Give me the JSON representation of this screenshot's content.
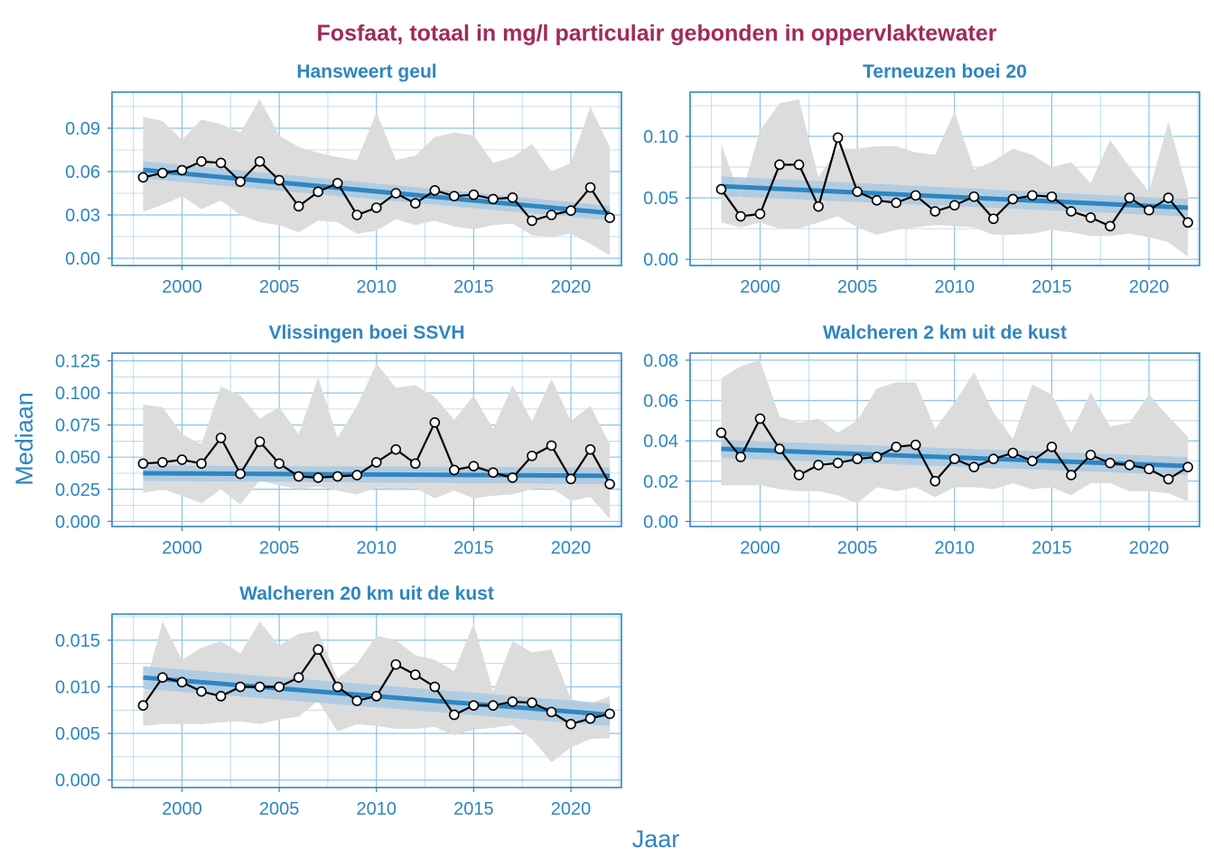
{
  "title": "Fosfaat, totaal in mg/l particulair gebonden in oppervlaktewater",
  "xlabel": "Jaar",
  "ylabel": "Mediaan",
  "colors": {
    "title": "#A3295A",
    "axis": "#2E86C1",
    "trend": "#2E86C1",
    "trend_band": "#A9C9E2",
    "range_band": "#DCDCDC",
    "line": "#000000",
    "grid": "#8EC3E6"
  },
  "chart_data": [
    {
      "type": "line",
      "title": "Hansweert geul",
      "xlim": [
        1996.4,
        2022.6
      ],
      "ylim": [
        -0.005,
        0.115
      ],
      "xticks": [
        2000,
        2005,
        2010,
        2015,
        2020
      ],
      "yticks": [
        0.0,
        0.03,
        0.06,
        0.09
      ],
      "ytick_labels": [
        "0.00",
        "0.03",
        "0.06",
        "0.09"
      ],
      "x": [
        1998,
        1999,
        2000,
        2001,
        2002,
        2003,
        2004,
        2005,
        2006,
        2007,
        2008,
        2009,
        2010,
        2011,
        2012,
        2013,
        2014,
        2015,
        2016,
        2017,
        2018,
        2019,
        2020,
        2021,
        2022
      ],
      "median": [
        0.056,
        0.059,
        0.061,
        0.067,
        0.066,
        0.053,
        0.067,
        0.054,
        0.036,
        0.046,
        0.052,
        0.03,
        0.035,
        0.045,
        0.038,
        0.047,
        0.043,
        0.044,
        0.041,
        0.042,
        0.026,
        0.03,
        0.033,
        0.049,
        0.028
      ],
      "range_low": [
        0.032,
        0.037,
        0.043,
        0.034,
        0.04,
        0.03,
        0.025,
        0.023,
        0.018,
        0.026,
        0.025,
        0.017,
        0.019,
        0.027,
        0.023,
        0.026,
        0.022,
        0.02,
        0.023,
        0.024,
        0.016,
        0.015,
        0.017,
        0.01,
        0.002
      ],
      "range_high": [
        0.098,
        0.095,
        0.082,
        0.096,
        0.093,
        0.087,
        0.11,
        0.085,
        0.077,
        0.073,
        0.07,
        0.068,
        0.101,
        0.068,
        0.071,
        0.084,
        0.087,
        0.085,
        0.066,
        0.07,
        0.079,
        0.06,
        0.066,
        0.105,
        0.077
      ],
      "trend": [
        0.0612,
        0.0313
      ],
      "trend_band": [
        0.006,
        0.005
      ]
    },
    {
      "type": "line",
      "title": "Terneuzen boei 20",
      "xlim": [
        1996.4,
        2022.6
      ],
      "ylim": [
        -0.005,
        0.136
      ],
      "xticks": [
        2000,
        2005,
        2010,
        2015,
        2020
      ],
      "yticks": [
        0.0,
        0.05,
        0.1
      ],
      "ytick_labels": [
        "0.00",
        "0.05",
        "0.10"
      ],
      "x": [
        1998,
        1999,
        2000,
        2001,
        2002,
        2003,
        2004,
        2005,
        2006,
        2007,
        2008,
        2009,
        2010,
        2011,
        2012,
        2013,
        2014,
        2015,
        2016,
        2017,
        2018,
        2019,
        2020,
        2021,
        2022
      ],
      "median": [
        0.057,
        0.035,
        0.037,
        0.077,
        0.077,
        0.043,
        0.099,
        0.055,
        0.048,
        0.046,
        0.052,
        0.039,
        0.044,
        0.051,
        0.033,
        0.049,
        0.052,
        0.051,
        0.039,
        0.034,
        0.027,
        0.05,
        0.04,
        0.05,
        0.03
      ],
      "range_low": [
        0.03,
        0.026,
        0.03,
        0.025,
        0.025,
        0.03,
        0.035,
        0.026,
        0.02,
        0.024,
        0.026,
        0.028,
        0.027,
        0.026,
        0.02,
        0.02,
        0.021,
        0.024,
        0.022,
        0.019,
        0.019,
        0.021,
        0.018,
        0.014,
        0.002
      ],
      "range_high": [
        0.094,
        0.05,
        0.105,
        0.127,
        0.13,
        0.067,
        0.09,
        0.09,
        0.092,
        0.092,
        0.087,
        0.085,
        0.12,
        0.073,
        0.08,
        0.09,
        0.085,
        0.075,
        0.079,
        0.062,
        0.097,
        0.075,
        0.055,
        0.112,
        0.055
      ],
      "trend": [
        0.0595,
        0.042
      ],
      "trend_band": [
        0.008,
        0.007
      ]
    },
    {
      "type": "line",
      "title": "Vlissingen boei SSVH",
      "xlim": [
        1996.4,
        2022.6
      ],
      "ylim": [
        -0.004,
        0.131
      ],
      "xticks": [
        2000,
        2005,
        2010,
        2015,
        2020
      ],
      "yticks": [
        0.0,
        0.025,
        0.05,
        0.075,
        0.1,
        0.125
      ],
      "ytick_labels": [
        "0.000",
        "0.025",
        "0.050",
        "0.075",
        "0.100",
        "0.125"
      ],
      "x": [
        1998,
        1999,
        2000,
        2001,
        2002,
        2003,
        2004,
        2005,
        2006,
        2007,
        2008,
        2009,
        2010,
        2011,
        2012,
        2013,
        2014,
        2015,
        2016,
        2017,
        2018,
        2019,
        2020,
        2021,
        2022
      ],
      "median": [
        0.045,
        0.046,
        0.048,
        0.045,
        0.065,
        0.037,
        0.062,
        0.045,
        0.035,
        0.034,
        0.035,
        0.036,
        0.046,
        0.056,
        0.045,
        0.077,
        0.04,
        0.043,
        0.038,
        0.034,
        0.051,
        0.059,
        0.033,
        0.056,
        0.029
      ],
      "range_low": [
        0.022,
        0.025,
        0.02,
        0.014,
        0.025,
        0.013,
        0.032,
        0.028,
        0.025,
        0.027,
        0.024,
        0.021,
        0.026,
        0.025,
        0.026,
        0.018,
        0.024,
        0.018,
        0.02,
        0.021,
        0.025,
        0.026,
        0.016,
        0.019,
        0.002
      ],
      "range_high": [
        0.091,
        0.089,
        0.068,
        0.06,
        0.105,
        0.098,
        0.08,
        0.089,
        0.068,
        0.112,
        0.065,
        0.09,
        0.123,
        0.104,
        0.106,
        0.097,
        0.079,
        0.098,
        0.072,
        0.106,
        0.078,
        0.111,
        0.078,
        0.09,
        0.06
      ],
      "trend": [
        0.0375,
        0.0355
      ],
      "trend_band": [
        0.006,
        0.0065
      ]
    },
    {
      "type": "line",
      "title": "Walcheren 2 km uit de kust",
      "xlim": [
        1996.4,
        2022.6
      ],
      "ylim": [
        -0.0025,
        0.0835
      ],
      "xticks": [
        2000,
        2005,
        2010,
        2015,
        2020
      ],
      "yticks": [
        0.0,
        0.02,
        0.04,
        0.06,
        0.08
      ],
      "ytick_labels": [
        "0.00",
        "0.02",
        "0.04",
        "0.06",
        "0.08"
      ],
      "x": [
        1998,
        1999,
        2000,
        2001,
        2002,
        2003,
        2004,
        2005,
        2006,
        2007,
        2008,
        2009,
        2010,
        2011,
        2012,
        2013,
        2014,
        2015,
        2016,
        2017,
        2018,
        2019,
        2020,
        2021,
        2022
      ],
      "median": [
        0.044,
        0.032,
        0.051,
        0.036,
        0.023,
        0.028,
        0.029,
        0.031,
        0.032,
        0.037,
        0.038,
        0.02,
        0.031,
        0.027,
        0.031,
        0.034,
        0.03,
        0.037,
        0.023,
        0.033,
        0.029,
        0.028,
        0.026,
        0.021,
        0.027
      ],
      "range_low": [
        0.018,
        0.018,
        0.018,
        0.016,
        0.015,
        0.015,
        0.013,
        0.009,
        0.017,
        0.015,
        0.017,
        0.012,
        0.017,
        0.017,
        0.016,
        0.019,
        0.016,
        0.017,
        0.013,
        0.019,
        0.019,
        0.015,
        0.015,
        0.014,
        0.01
      ],
      "range_high": [
        0.071,
        0.077,
        0.08,
        0.052,
        0.049,
        0.051,
        0.044,
        0.05,
        0.066,
        0.069,
        0.069,
        0.046,
        0.059,
        0.074,
        0.054,
        0.041,
        0.068,
        0.063,
        0.044,
        0.064,
        0.047,
        0.049,
        0.063,
        0.052,
        0.042
      ],
      "trend": [
        0.036,
        0.0275
      ],
      "trend_band": [
        0.0045,
        0.0045
      ]
    },
    {
      "type": "line",
      "title": "Walcheren 20 km uit de kust",
      "xlim": [
        1996.4,
        2022.6
      ],
      "ylim": [
        -0.0008,
        0.0178
      ],
      "xticks": [
        2000,
        2005,
        2010,
        2015,
        2020
      ],
      "yticks": [
        0.0,
        0.005,
        0.01,
        0.015
      ],
      "ytick_labels": [
        "0.000",
        "0.005",
        "0.010",
        "0.015"
      ],
      "x": [
        1998,
        1999,
        2000,
        2001,
        2002,
        2003,
        2004,
        2005,
        2006,
        2007,
        2008,
        2009,
        2010,
        2011,
        2012,
        2013,
        2014,
        2015,
        2016,
        2017,
        2018,
        2019,
        2020,
        2021,
        2022
      ],
      "median": [
        0.008,
        0.011,
        0.0105,
        0.0095,
        0.009,
        0.01,
        0.01,
        0.01,
        0.011,
        0.014,
        0.01,
        0.0085,
        0.009,
        0.0124,
        0.0113,
        0.01,
        0.007,
        0.008,
        0.008,
        0.0084,
        0.0083,
        0.0073,
        0.006,
        0.0066,
        0.0071
      ],
      "range_low": [
        0.0058,
        0.006,
        0.006,
        0.006,
        0.0062,
        0.0063,
        0.006,
        0.0065,
        0.0068,
        0.0085,
        0.0052,
        0.006,
        0.0058,
        0.0055,
        0.0055,
        0.0057,
        0.0048,
        0.0054,
        0.0056,
        0.0059,
        0.0044,
        0.0019,
        0.0035,
        0.0044,
        0.0045
      ],
      "range_high": [
        0.0093,
        0.017,
        0.0129,
        0.0142,
        0.0149,
        0.0136,
        0.017,
        0.0144,
        0.0157,
        0.016,
        0.0109,
        0.0125,
        0.0155,
        0.015,
        0.0134,
        0.0129,
        0.0117,
        0.0168,
        0.0095,
        0.0149,
        0.0137,
        0.014,
        0.0087,
        0.0082,
        0.009
      ],
      "trend": [
        0.011,
        0.007
      ],
      "trend_band": [
        0.0012,
        0.0012
      ]
    }
  ]
}
